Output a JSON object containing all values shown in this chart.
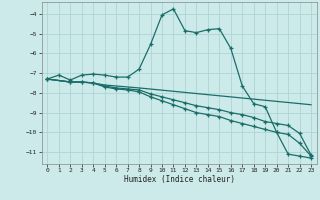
{
  "xlabel": "Humidex (Indice chaleur)",
  "background_color": "#cdeaea",
  "grid_color": "#aed4d4",
  "line_color": "#1a6e6a",
  "xlim": [
    -0.5,
    23.5
  ],
  "ylim": [
    -11.6,
    -3.4
  ],
  "yticks": [
    -11,
    -10,
    -9,
    -8,
    -7,
    -6,
    -5,
    -4
  ],
  "xticks": [
    0,
    1,
    2,
    3,
    4,
    5,
    6,
    7,
    8,
    9,
    10,
    11,
    12,
    13,
    14,
    15,
    16,
    17,
    18,
    19,
    20,
    21,
    22,
    23
  ],
  "line1_x": [
    0,
    1,
    2,
    3,
    4,
    5,
    6,
    7,
    8,
    9,
    10,
    11,
    12,
    13,
    14,
    15,
    16,
    17,
    18,
    19,
    20,
    21,
    22,
    23
  ],
  "line1_y": [
    -7.3,
    -7.1,
    -7.35,
    -7.1,
    -7.05,
    -7.1,
    -7.2,
    -7.2,
    -6.8,
    -5.55,
    -4.05,
    -3.75,
    -4.85,
    -4.95,
    -4.8,
    -4.75,
    -5.75,
    -7.65,
    -8.55,
    -8.7,
    -10.0,
    -11.1,
    -11.2,
    -11.3
  ],
  "line2_x": [
    0,
    2,
    3,
    4,
    5,
    6,
    7,
    8,
    23
  ],
  "line2_y": [
    -7.3,
    -7.45,
    -7.45,
    -7.5,
    -7.6,
    -7.65,
    -7.7,
    -7.75,
    -8.6
  ],
  "line3_x": [
    0,
    2,
    3,
    4,
    5,
    6,
    7,
    8,
    9,
    10,
    11,
    12,
    13,
    14,
    15,
    16,
    17,
    18,
    19,
    20,
    21,
    22,
    23
  ],
  "line3_y": [
    -7.3,
    -7.45,
    -7.45,
    -7.5,
    -7.65,
    -7.75,
    -7.8,
    -7.85,
    -8.05,
    -8.2,
    -8.35,
    -8.5,
    -8.65,
    -8.75,
    -8.85,
    -9.0,
    -9.1,
    -9.25,
    -9.45,
    -9.55,
    -9.65,
    -10.05,
    -11.15
  ],
  "line4_x": [
    0,
    2,
    3,
    4,
    5,
    6,
    7,
    8,
    9,
    10,
    11,
    12,
    13,
    14,
    15,
    16,
    17,
    18,
    19,
    20,
    21,
    22,
    23
  ],
  "line4_y": [
    -7.3,
    -7.45,
    -7.45,
    -7.5,
    -7.7,
    -7.8,
    -7.85,
    -7.95,
    -8.2,
    -8.4,
    -8.6,
    -8.8,
    -9.0,
    -9.1,
    -9.2,
    -9.4,
    -9.55,
    -9.7,
    -9.85,
    -10.0,
    -10.1,
    -10.55,
    -11.2
  ]
}
